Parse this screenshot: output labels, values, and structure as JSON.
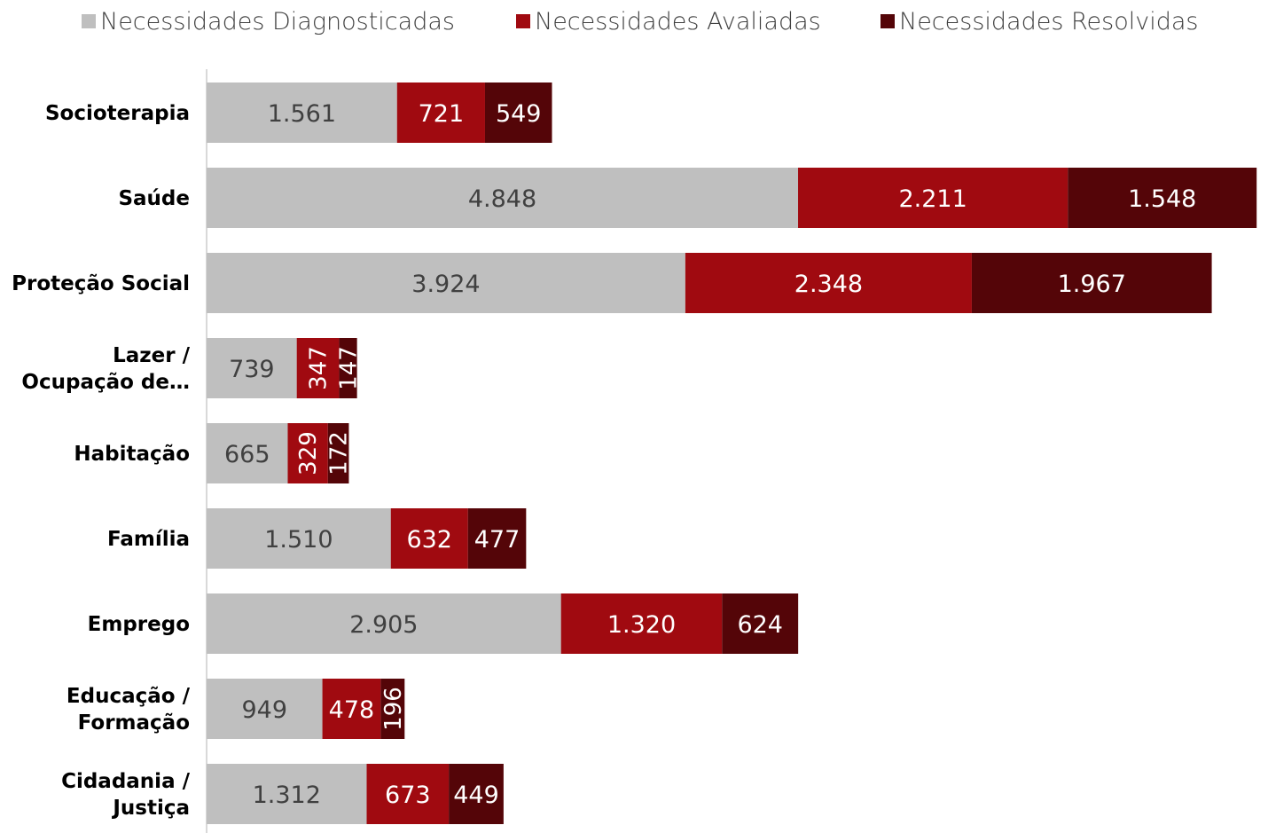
{
  "chart_data": {
    "type": "bar",
    "orientation": "horizontal",
    "stacked": true,
    "title": "",
    "xlabel": "",
    "ylabel": "",
    "legend_position": "top",
    "grid": false,
    "categories": [
      "Socioterapia",
      "Saúde",
      "Proteção Social",
      "Lazer / Ocupação de...",
      "Habitação",
      "Família",
      "Emprego",
      "Educação / Formação",
      "Cidadania / Justiça"
    ],
    "category_lines": [
      [
        "Socioterapia"
      ],
      [
        "Saúde"
      ],
      [
        "Proteção Social"
      ],
      [
        "Lazer /",
        "Ocupação de…"
      ],
      [
        "Habitação"
      ],
      [
        "Família"
      ],
      [
        "Emprego"
      ],
      [
        "Educação /",
        "Formação"
      ],
      [
        "Cidadania /",
        "Justiça"
      ]
    ],
    "series": [
      {
        "name": "Necessidades Diagnosticadas",
        "color": "#bfbfbf",
        "values": [
          1561,
          4848,
          3924,
          739,
          665,
          1510,
          2905,
          949,
          1312
        ],
        "labels": [
          "1.561",
          "4.848",
          "3.924",
          "739",
          "665",
          "1.510",
          "2.905",
          "949",
          "1.312"
        ]
      },
      {
        "name": "Necessidades Avaliadas",
        "color": "#a00a10",
        "values": [
          721,
          2211,
          2348,
          347,
          329,
          632,
          1320,
          478,
          673
        ],
        "labels": [
          "721",
          "2.211",
          "2.348",
          "347",
          "329",
          "632",
          "1.320",
          "478",
          "673"
        ]
      },
      {
        "name": "Necessidades Resolvidas",
        "color": "#540508",
        "values": [
          549,
          1548,
          1967,
          147,
          172,
          477,
          624,
          196,
          449
        ],
        "labels": [
          "549",
          "1.548",
          "1.967",
          "147",
          "172",
          "477",
          "624",
          "196",
          "449"
        ]
      }
    ],
    "xlim": [
      0,
      8700
    ]
  }
}
